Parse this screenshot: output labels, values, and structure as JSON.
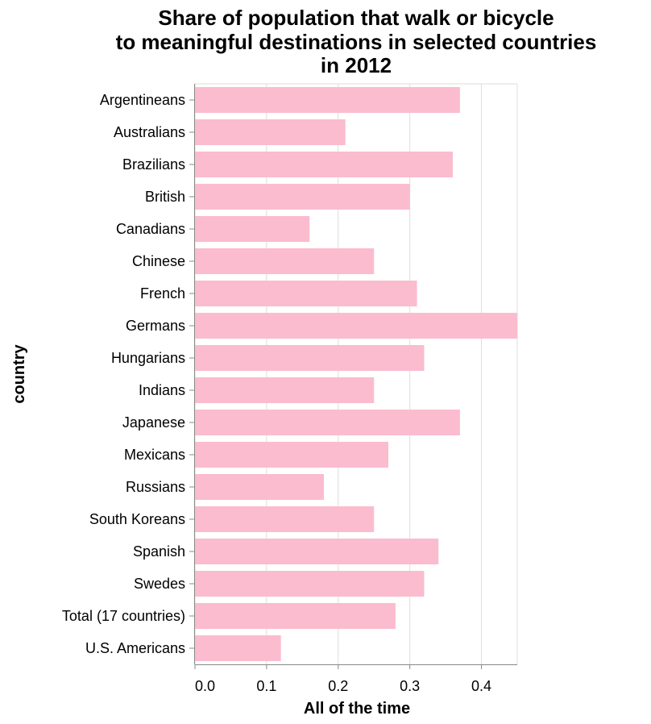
{
  "chart_data": {
    "type": "bar",
    "orientation": "horizontal",
    "title": [
      "Share of population that walk or bicycle",
      "to meaningful destinations in selected countries",
      "in 2012"
    ],
    "xlabel": "All of the time",
    "ylabel": "country",
    "xlim": [
      0,
      0.45
    ],
    "x_ticks": [
      "0.0",
      "0.1",
      "0.2",
      "0.3",
      "0.4"
    ],
    "x_tick_values": [
      0,
      0.1,
      0.2,
      0.3,
      0.4
    ],
    "grid": true,
    "bar_color": "#fbbccf",
    "categories": [
      "Argentineans",
      "Australians",
      "Brazilians",
      "British",
      "Canadians",
      "Chinese",
      "French",
      "Germans",
      "Hungarians",
      "Indians",
      "Japanese",
      "Mexicans",
      "Russians",
      "South Koreans",
      "Spanish",
      "Swedes",
      "Total (17 countries)",
      "U.S. Americans"
    ],
    "values": [
      0.37,
      0.21,
      0.36,
      0.3,
      0.16,
      0.25,
      0.31,
      0.45,
      0.32,
      0.25,
      0.37,
      0.27,
      0.18,
      0.25,
      0.34,
      0.32,
      0.28,
      0.12
    ]
  }
}
